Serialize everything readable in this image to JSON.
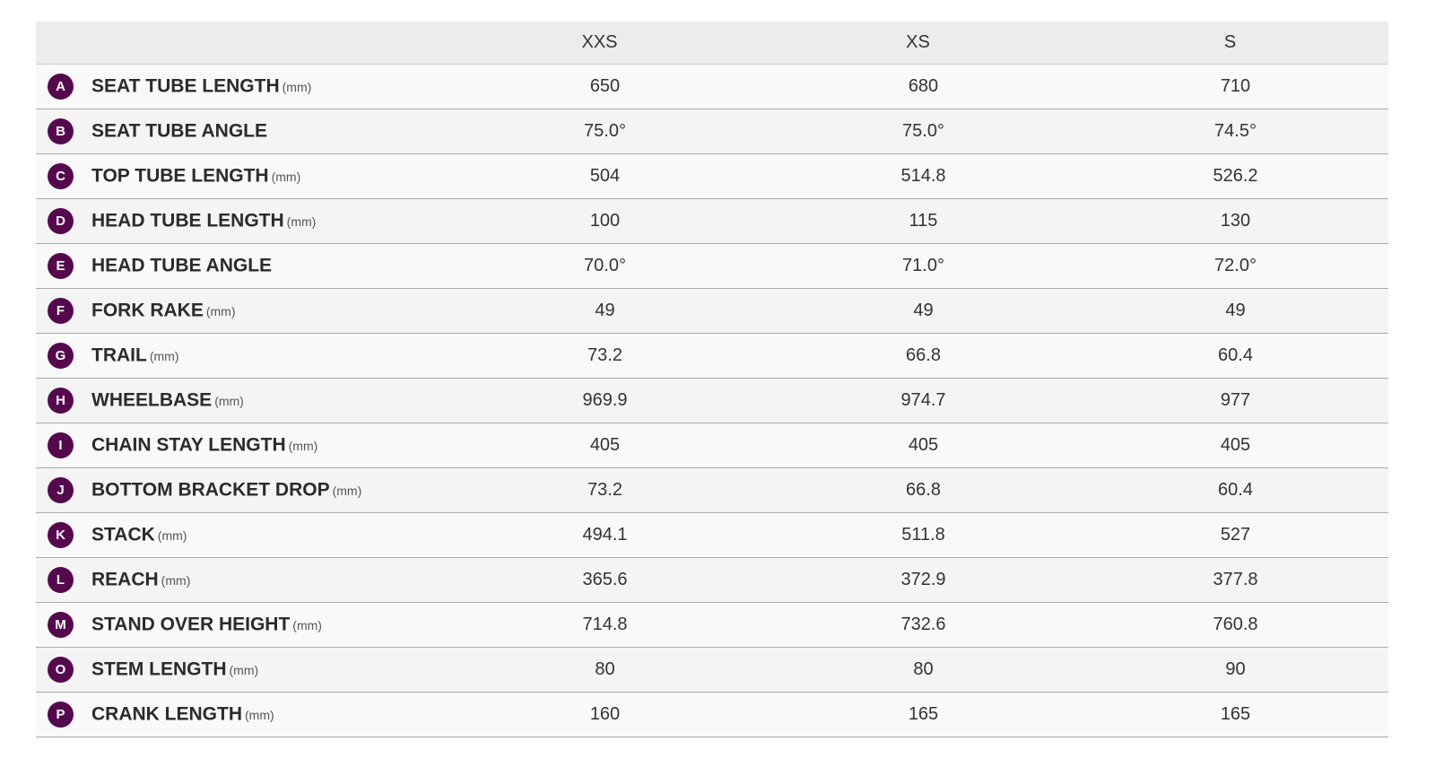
{
  "header": {
    "sizes": [
      "XXS",
      "XS",
      "S"
    ]
  },
  "badge_color": "#56084f",
  "rows": [
    {
      "letter": "A",
      "name": "SEAT TUBE LENGTH",
      "unit": "(mm)",
      "values": [
        "650",
        "680",
        "710"
      ]
    },
    {
      "letter": "B",
      "name": "SEAT TUBE ANGLE",
      "unit": "",
      "values": [
        "75.0°",
        "75.0°",
        "74.5°"
      ]
    },
    {
      "letter": "C",
      "name": "TOP TUBE LENGTH",
      "unit": "(mm)",
      "values": [
        "504",
        "514.8",
        "526.2"
      ]
    },
    {
      "letter": "D",
      "name": "HEAD TUBE LENGTH",
      "unit": "(mm)",
      "values": [
        "100",
        "115",
        "130"
      ]
    },
    {
      "letter": "E",
      "name": "HEAD TUBE ANGLE",
      "unit": "",
      "values": [
        "70.0°",
        "71.0°",
        "72.0°"
      ]
    },
    {
      "letter": "F",
      "name": "FORK RAKE",
      "unit": "(mm)",
      "values": [
        "49",
        "49",
        "49"
      ]
    },
    {
      "letter": "G",
      "name": "TRAIL",
      "unit": "(mm)",
      "values": [
        "73.2",
        "66.8",
        "60.4"
      ]
    },
    {
      "letter": "H",
      "name": "WHEELBASE",
      "unit": "(mm)",
      "values": [
        "969.9",
        "974.7",
        "977"
      ]
    },
    {
      "letter": "I",
      "name": "CHAIN STAY LENGTH",
      "unit": "(mm)",
      "values": [
        "405",
        "405",
        "405"
      ]
    },
    {
      "letter": "J",
      "name": "BOTTOM BRACKET DROP",
      "unit": "(mm)",
      "values": [
        "73.2",
        "66.8",
        "60.4"
      ]
    },
    {
      "letter": "K",
      "name": "STACK",
      "unit": "(mm)",
      "values": [
        "494.1",
        "511.8",
        "527"
      ]
    },
    {
      "letter": "L",
      "name": "REACH",
      "unit": "(mm)",
      "values": [
        "365.6",
        "372.9",
        "377.8"
      ]
    },
    {
      "letter": "M",
      "name": "STAND OVER HEIGHT",
      "unit": "(mm)",
      "values": [
        "714.8",
        "732.6",
        "760.8"
      ]
    },
    {
      "letter": "O",
      "name": "STEM LENGTH",
      "unit": "(mm)",
      "values": [
        "80",
        "80",
        "90"
      ]
    },
    {
      "letter": "P",
      "name": "CRANK LENGTH",
      "unit": "(mm)",
      "values": [
        "160",
        "165",
        "165"
      ]
    }
  ]
}
